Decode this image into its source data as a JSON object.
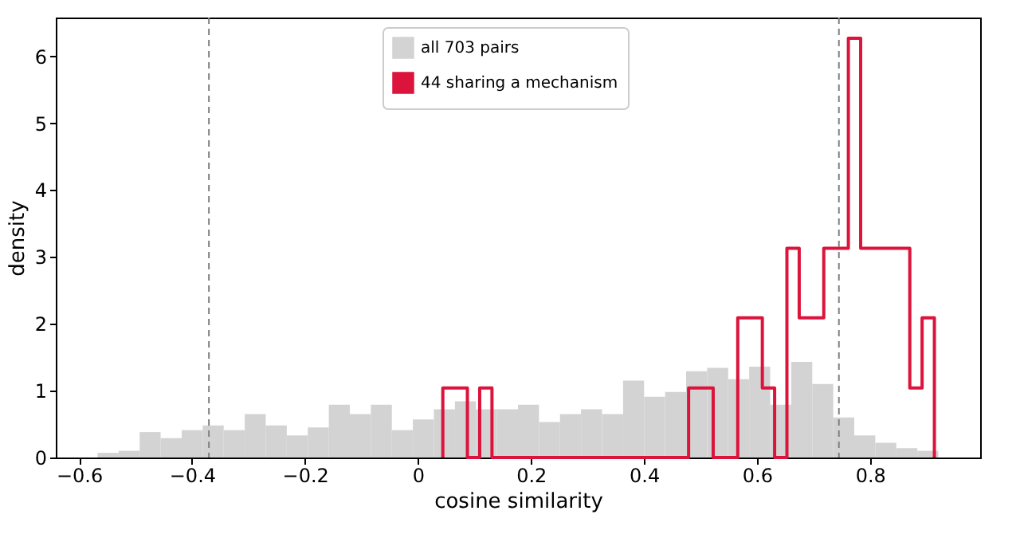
{
  "chart_data": {
    "type": "histogram",
    "xlabel": "cosine similarity",
    "ylabel": "density",
    "bins": [
      -0.567,
      -0.5298,
      -0.4926,
      -0.4554,
      -0.4182,
      -0.381,
      -0.3438,
      -0.3066,
      -0.2694,
      -0.2322,
      -0.195,
      -0.1578,
      -0.1206,
      -0.0834,
      -0.0462,
      -0.009,
      0.0282,
      0.0654,
      0.1026,
      0.1398,
      0.177,
      0.2142,
      0.2514,
      0.2886,
      0.3258,
      0.363,
      0.4002,
      0.4374,
      0.4746,
      0.5118,
      0.549,
      0.5862,
      0.6234,
      0.6606,
      0.6978,
      0.735,
      0.7722,
      0.8094,
      0.8466,
      0.8838,
      0.921
    ],
    "series": [
      {
        "name": "all 703 pairs",
        "color": "#d3d3d3",
        "values": [
          0.07,
          0.1,
          0.38,
          0.29,
          0.41,
          0.48,
          0.41,
          0.65,
          0.48,
          0.33,
          0.45,
          0.79,
          0.65,
          0.79,
          0.41,
          0.57,
          0.72,
          0.84,
          0.72,
          0.72,
          0.79,
          0.53,
          0.65,
          0.72,
          0.65,
          1.15,
          0.91,
          0.98,
          1.29,
          1.34,
          1.17,
          1.36,
          0.79,
          1.43,
          1.1,
          0.6,
          0.33,
          0.22,
          0.14,
          0.1
        ]
      },
      {
        "name": "44 sharing a mechanism",
        "type": "step",
        "color": "#dc143c",
        "x": [
          0.044,
          0.044,
          0.06575,
          0.0875,
          0.10925,
          0.131,
          0.15275,
          0.1745,
          0.19625,
          0.218,
          0.23975,
          0.2615,
          0.28325,
          0.305,
          0.32675,
          0.3485,
          0.37025,
          0.392,
          0.41375,
          0.4355,
          0.45725,
          0.479,
          0.50075,
          0.5225,
          0.54425,
          0.566,
          0.58775,
          0.6095,
          0.63125,
          0.653,
          0.67475,
          0.6965,
          0.71825,
          0.74,
          0.76175,
          0.7835,
          0.80525,
          0.827,
          0.84875,
          0.8705,
          0.89225,
          0.914
        ],
        "values": [
          0,
          1.04,
          1.04,
          0,
          1.04,
          0,
          0,
          0,
          0,
          0,
          0,
          0,
          0,
          0,
          0,
          0,
          0,
          0,
          0,
          0,
          0,
          1.04,
          1.04,
          0,
          0,
          2.09,
          2.09,
          1.04,
          0,
          3.13,
          2.09,
          2.09,
          3.13,
          3.13,
          6.27,
          3.13,
          3.13,
          3.13,
          3.13,
          1.04,
          2.09,
          0
        ]
      }
    ],
    "ref_lines": [
      {
        "axis": "x",
        "value": -0.37,
        "color": "#808080",
        "line_style": "dashed"
      },
      {
        "axis": "x",
        "value": 0.745,
        "color": "#808080",
        "line_style": "dashed"
      }
    ],
    "xlim": [
      -0.641,
      0.995
    ],
    "ylim": [
      0,
      6.58
    ],
    "xticks": [
      {
        "value": -0.6,
        "label": "−0.6"
      },
      {
        "value": -0.4,
        "label": "−0.4"
      },
      {
        "value": -0.2,
        "label": "−0.2"
      },
      0,
      0.2,
      0.4,
      0.6,
      0.8
    ],
    "yticks": [
      0,
      1,
      2,
      3,
      4,
      5,
      6
    ],
    "grid": false,
    "legend": "top"
  }
}
